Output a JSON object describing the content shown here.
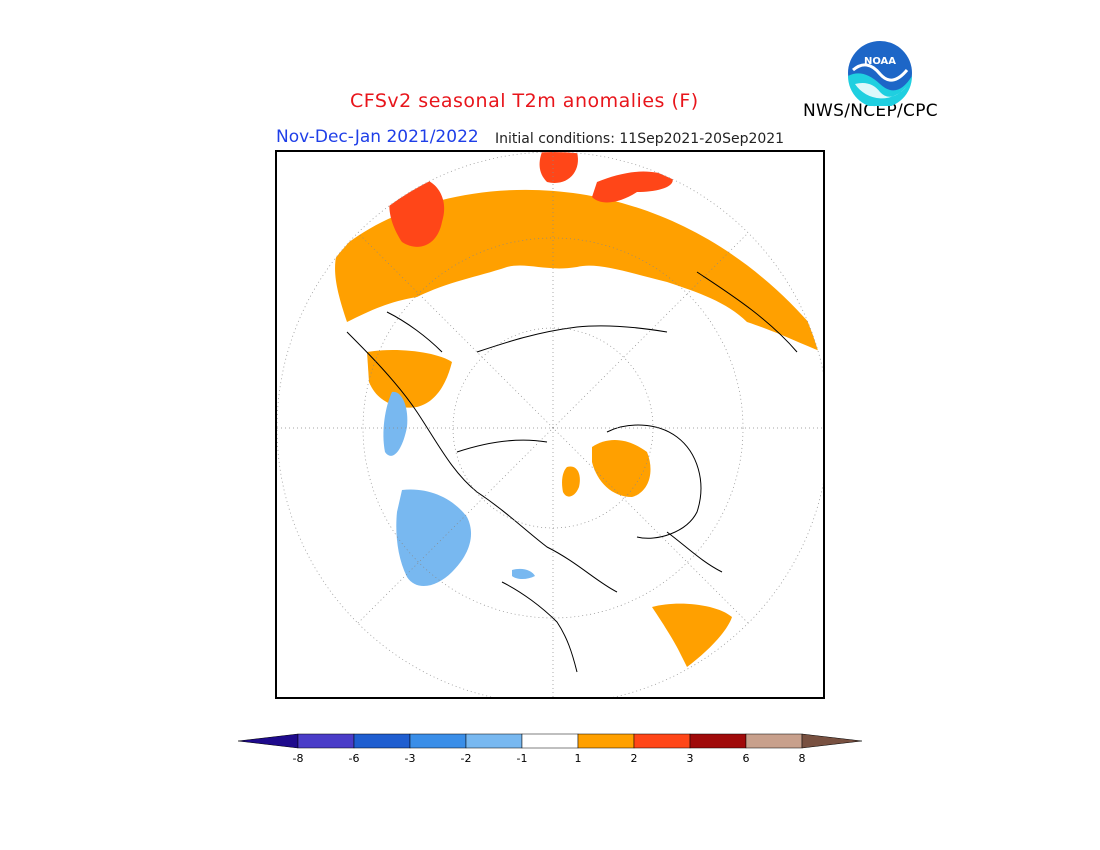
{
  "title": "CFSv2 seasonal T2m anomalies (F)",
  "season_label": "Nov-Dec-Jan 2021/2022",
  "initial_conditions": "Initial conditions: 11Sep2021-20Sep2021",
  "agency": "NWS/NCEP/CPC",
  "logo": {
    "text": "NOAA",
    "icon": "noaa-logo-icon"
  },
  "map": {
    "projection": "polar-stereographic",
    "region": "Northern Hemisphere"
  },
  "colorbar": {
    "colors": [
      "#1e0a8c",
      "#4a3cc8",
      "#1f5ed0",
      "#3a8ee8",
      "#78b8f0",
      "#ffffff",
      "#ffa000",
      "#ff4618",
      "#a00a0a",
      "#c8a08c",
      "#785040"
    ],
    "labels": [
      "-8",
      "-6",
      "-3",
      "-2",
      "-1",
      "1",
      "2",
      "3",
      "6",
      "8"
    ]
  }
}
